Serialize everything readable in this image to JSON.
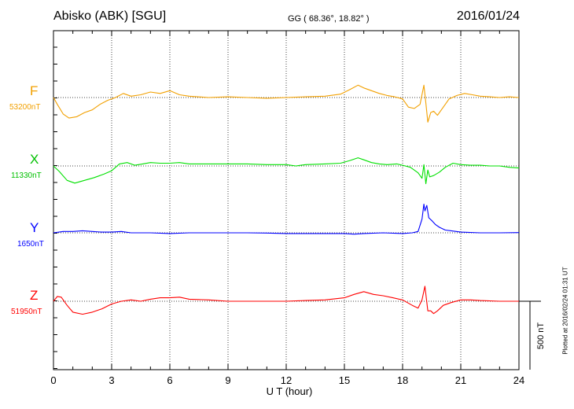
{
  "header": {
    "station": "Abisko (ABK)  [SGU]",
    "coords": "GG ( 68.36°,  18.82° )",
    "date": "2016/01/24"
  },
  "footer": {
    "plotted_note": "Plotted at 2016/02/24 01:31  UT"
  },
  "chart_data": {
    "type": "line",
    "title": "Abisko (ABK)  [SGU]",
    "xlabel": "U T (hour)",
    "xlim": [
      0,
      24
    ],
    "xticks": [
      0,
      3,
      6,
      9,
      12,
      15,
      18,
      21,
      24
    ],
    "grid": true,
    "scale_bar": {
      "label": "500 nT",
      "value_nT": 500
    },
    "series": [
      {
        "name": "F",
        "baseline_label": "53200nT",
        "baseline_nT": 53200,
        "color": "#f2a000",
        "x": [
          0,
          0.2,
          0.5,
          0.8,
          1.2,
          1.6,
          2.0,
          2.4,
          2.8,
          3.2,
          3.6,
          4.0,
          4.5,
          5.0,
          5.5,
          6.0,
          6.5,
          7,
          8,
          9,
          10,
          11,
          12,
          13,
          14,
          14.8,
          15.3,
          15.7,
          16.0,
          16.4,
          16.8,
          17.2,
          17.6,
          18.0,
          18.3,
          18.6,
          18.9,
          19.1,
          19.2,
          19.3,
          19.45,
          19.6,
          19.8,
          20.1,
          20.4,
          20.8,
          21.2,
          21.6,
          22,
          22.5,
          23,
          23.5,
          24
        ],
        "y": [
          53200,
          53150,
          53080,
          53050,
          53060,
          53090,
          53110,
          53150,
          53180,
          53200,
          53230,
          53210,
          53220,
          53240,
          53230,
          53250,
          53220,
          53210,
          53200,
          53205,
          53200,
          53195,
          53200,
          53205,
          53210,
          53225,
          53260,
          53290,
          53270,
          53250,
          53230,
          53215,
          53205,
          53190,
          53130,
          53120,
          53150,
          53290,
          53160,
          53020,
          53090,
          53100,
          53070,
          53130,
          53190,
          53215,
          53230,
          53220,
          53210,
          53205,
          53200,
          53205,
          53200
        ]
      },
      {
        "name": "X",
        "baseline_label": "11330nT",
        "baseline_nT": 11330,
        "color": "#00e000",
        "x": [
          0,
          0.3,
          0.7,
          1.1,
          1.6,
          2.1,
          2.6,
          3.0,
          3.4,
          3.8,
          4.2,
          4.6,
          5.0,
          5.5,
          6.0,
          6.5,
          7,
          8,
          9,
          10,
          11,
          12,
          12.5,
          13,
          14,
          14.8,
          15.3,
          15.7,
          16.0,
          16.4,
          16.8,
          17.2,
          17.7,
          18.0,
          18.4,
          18.8,
          19.0,
          19.1,
          19.2,
          19.3,
          19.4,
          19.6,
          19.9,
          20.2,
          20.6,
          21,
          21.5,
          22,
          22.5,
          23,
          23.5,
          24
        ],
        "y": [
          11330,
          11290,
          11225,
          11205,
          11225,
          11245,
          11270,
          11295,
          11345,
          11355,
          11335,
          11345,
          11355,
          11350,
          11350,
          11355,
          11345,
          11345,
          11345,
          11345,
          11340,
          11340,
          11330,
          11340,
          11345,
          11350,
          11370,
          11390,
          11375,
          11355,
          11345,
          11340,
          11345,
          11335,
          11320,
          11280,
          11240,
          11340,
          11200,
          11300,
          11250,
          11260,
          11285,
          11320,
          11350,
          11340,
          11335,
          11335,
          11330,
          11330,
          11320,
          11315
        ]
      },
      {
        "name": "Y",
        "baseline_label": "1650nT",
        "baseline_nT": 1650,
        "color": "#0000ff",
        "x": [
          0,
          0.5,
          1.0,
          1.5,
          2.0,
          2.5,
          3.0,
          3.5,
          4,
          5,
          6,
          7,
          8,
          9,
          10,
          11,
          12,
          13,
          14,
          15,
          15.5,
          16,
          17,
          18,
          18.5,
          18.8,
          19.0,
          19.1,
          19.15,
          19.25,
          19.35,
          19.5,
          19.7,
          19.9,
          20.2,
          20.5,
          21,
          22,
          23,
          24
        ],
        "y": [
          1650,
          1660,
          1660,
          1665,
          1660,
          1655,
          1655,
          1660,
          1650,
          1650,
          1645,
          1650,
          1650,
          1650,
          1650,
          1648,
          1645,
          1645,
          1645,
          1645,
          1640,
          1645,
          1650,
          1645,
          1650,
          1660,
          1750,
          1860,
          1810,
          1850,
          1760,
          1740,
          1710,
          1690,
          1670,
          1665,
          1655,
          1650,
          1650,
          1652
        ]
      },
      {
        "name": "Z",
        "baseline_label": "51950nT",
        "baseline_nT": 51950,
        "color": "#ff0000",
        "x": [
          0,
          0.2,
          0.4,
          0.7,
          1.0,
          1.5,
          2.0,
          2.5,
          3.0,
          3.5,
          4,
          4.5,
          5,
          5.5,
          6,
          6.5,
          7,
          8,
          9,
          10,
          11,
          12,
          13,
          14,
          15,
          15.5,
          16,
          16.5,
          17,
          17.5,
          18,
          18.5,
          18.8,
          19.0,
          19.15,
          19.3,
          19.45,
          19.6,
          19.8,
          20.1,
          20.5,
          21,
          21.5,
          22,
          23,
          24
        ],
        "y": [
          51950,
          51985,
          51980,
          51920,
          51870,
          51855,
          51870,
          51895,
          51930,
          51950,
          51960,
          51950,
          51965,
          51975,
          51975,
          51980,
          51965,
          51960,
          51950,
          51950,
          51950,
          51950,
          51955,
          51960,
          51975,
          52000,
          52020,
          52000,
          51990,
          51975,
          51960,
          51920,
          51900,
          51960,
          52060,
          51880,
          51880,
          51860,
          51880,
          51920,
          51940,
          51960,
          51960,
          51955,
          51950,
          51950
        ]
      }
    ]
  }
}
